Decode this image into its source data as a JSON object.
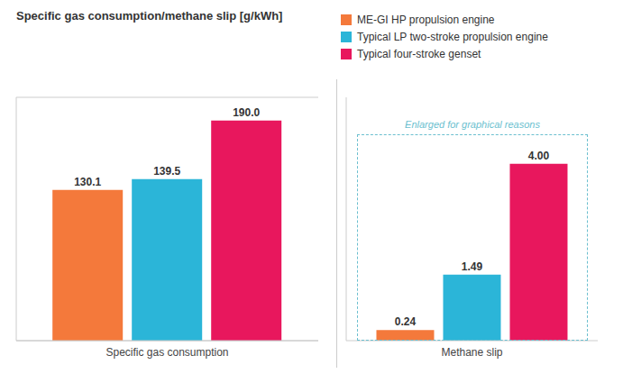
{
  "chart_data": [
    {
      "type": "bar",
      "title": "Specific gas consumption/methane slip [g/kWh]",
      "categories": [
        "Specific gas consumption"
      ],
      "series": [
        {
          "name": "ME-GI HP propulsion engine",
          "color": "#F4793B",
          "values": [
            130.1
          ],
          "value_labels": [
            "130.1"
          ]
        },
        {
          "name": "Typical LP two-stroke propulsion engine",
          "color": "#2BB5D8",
          "values": [
            139.5
          ],
          "value_labels": [
            "139.5"
          ]
        },
        {
          "name": "Typical four-stroke genset",
          "color": "#E8175D",
          "values": [
            190.0
          ],
          "value_labels": [
            "190.0"
          ]
        }
      ],
      "ylim": [
        0,
        210
      ],
      "yticks": [
        0,
        50,
        100,
        150,
        200
      ],
      "grid": true,
      "data_labels": true,
      "tick_labels": "x"
    },
    {
      "type": "bar",
      "categories": [
        "Methane slip"
      ],
      "series": [
        {
          "name": "ME-GI HP propulsion engine",
          "color": "#F4793B",
          "values": [
            0.24
          ],
          "value_labels": [
            "0.24"
          ]
        },
        {
          "name": "Typical LP two-stroke propulsion engine",
          "color": "#2BB5D8",
          "values": [
            1.49
          ],
          "value_labels": [
            "1.49"
          ]
        },
        {
          "name": "Typical four-stroke genset",
          "color": "#E8175D",
          "values": [
            4.0
          ],
          "value_labels": [
            "4.00"
          ]
        }
      ],
      "ylim": [
        0,
        5.5
      ],
      "grid": false,
      "data_labels": true,
      "tick_labels": "x",
      "annotation": "Enlarged for graphical reasons",
      "legend": "upper right"
    }
  ]
}
